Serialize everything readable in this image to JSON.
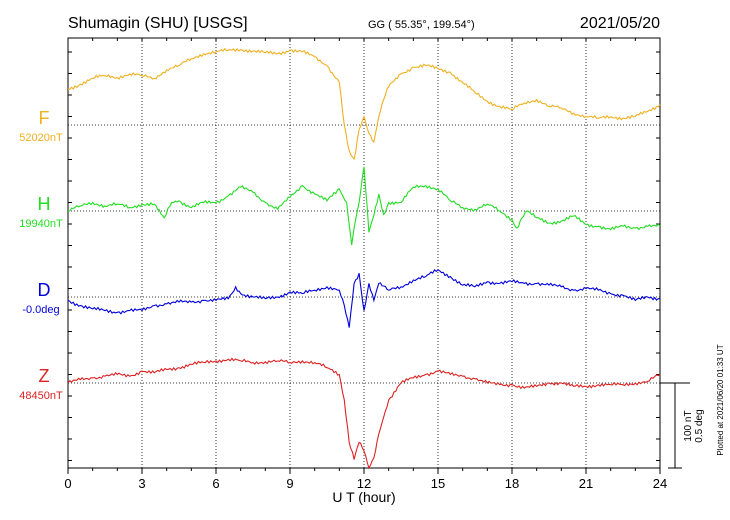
{
  "header": {
    "station": "Shumagin (SHU)  [USGS]",
    "coords": "GG ( 55.35°, 199.54°)",
    "date": "2021/05/20"
  },
  "scale": {
    "nt": "100 nT",
    "deg": "0.5 deg"
  },
  "plotted_note": "Plotted at 2021/06/20 01:33 UT",
  "chart_data": {
    "type": "line",
    "xlabel": "U T (hour)",
    "xlim": [
      0,
      24
    ],
    "xticks": [
      0,
      3,
      6,
      9,
      12,
      15,
      18,
      21,
      24
    ],
    "grid": true,
    "series": [
      {
        "name": "F",
        "baseline": "52020nT",
        "color": "#f0b020",
        "x": [
          0,
          0.5,
          1,
          1.5,
          2,
          2.5,
          3,
          3.5,
          4,
          4.5,
          5,
          5.5,
          6,
          6.5,
          7,
          7.5,
          8,
          8.5,
          9,
          9.5,
          10,
          10.5,
          11,
          11.2,
          11.4,
          11.6,
          11.8,
          12,
          12.2,
          12.4,
          12.6,
          12.8,
          13,
          13.5,
          14,
          14.5,
          15,
          15.5,
          16,
          16.5,
          17,
          17.5,
          18,
          18.5,
          19,
          19.5,
          20,
          20.5,
          21,
          21.5,
          22,
          22.5,
          23,
          23.5,
          24
        ],
        "y": [
          42,
          48,
          55,
          58,
          56,
          60,
          58,
          55,
          65,
          70,
          78,
          84,
          86,
          88,
          89,
          87,
          85,
          84,
          88,
          86,
          80,
          70,
          50,
          0,
          -30,
          -40,
          -5,
          10,
          -10,
          -20,
          10,
          30,
          45,
          60,
          68,
          70,
          66,
          62,
          50,
          38,
          28,
          22,
          18,
          26,
          30,
          22,
          20,
          14,
          10,
          8,
          10,
          8,
          10,
          16,
          24
        ]
      },
      {
        "name": "H",
        "baseline": "19940nT",
        "color": "#22dd22",
        "x": [
          0,
          0.5,
          1,
          1.5,
          2,
          2.5,
          3,
          3.5,
          3.9,
          4.2,
          4.5,
          5,
          5.5,
          6,
          6.5,
          7,
          7.5,
          8,
          8.5,
          9,
          9.5,
          10,
          10.5,
          11,
          11.3,
          11.5,
          11.6,
          11.8,
          12,
          12.2,
          12.4,
          12.6,
          12.8,
          13,
          13.5,
          14,
          14.5,
          15,
          15.5,
          16,
          16.5,
          17,
          17.5,
          18,
          18.2,
          18.4,
          18.6,
          19,
          19.5,
          20,
          20.5,
          21,
          21.5,
          22,
          22.5,
          23,
          23.5,
          24
        ],
        "y": [
          0,
          6,
          10,
          6,
          8,
          4,
          8,
          8,
          -8,
          10,
          12,
          4,
          10,
          10,
          18,
          28,
          22,
          10,
          2,
          16,
          30,
          20,
          12,
          26,
          10,
          -40,
          -20,
          10,
          52,
          -25,
          -5,
          20,
          -4,
          10,
          10,
          28,
          30,
          26,
          12,
          4,
          2,
          8,
          0,
          -10,
          -20,
          -8,
          0,
          -8,
          -14,
          -12,
          -6,
          -16,
          -18,
          -22,
          -18,
          -20,
          -18,
          -18
        ]
      },
      {
        "name": "D",
        "baseline": "-0.0deg",
        "color": "#0000dd",
        "x": [
          0,
          0.5,
          1,
          1.5,
          2,
          2.5,
          3,
          3.5,
          4,
          4.5,
          5,
          5.5,
          6,
          6.5,
          6.8,
          7,
          7.5,
          8,
          8.5,
          9,
          9.5,
          10,
          10.5,
          11,
          11.2,
          11.4,
          11.6,
          11.8,
          12,
          12.2,
          12.4,
          12.6,
          13,
          13.5,
          14,
          14.5,
          15,
          15.5,
          16,
          16.5,
          17,
          17.5,
          18,
          18.5,
          19,
          19.5,
          20,
          20.5,
          21,
          21.5,
          22,
          22.5,
          23,
          23.5,
          24
        ],
        "y": [
          -0.02,
          -0.05,
          -0.07,
          -0.08,
          -0.09,
          -0.08,
          -0.08,
          -0.05,
          -0.04,
          -0.03,
          -0.03,
          -0.02,
          -0.02,
          -0.01,
          0.06,
          0.02,
          0,
          -0.01,
          0,
          0.03,
          0.02,
          0.04,
          0.06,
          0.04,
          -0.05,
          -0.18,
          0.08,
          0.14,
          -0.08,
          0.08,
          -0.02,
          0.08,
          0.04,
          0.06,
          0.1,
          0.12,
          0.16,
          0.12,
          0.07,
          0.06,
          0.09,
          0.08,
          0.09,
          0.08,
          0.08,
          0.07,
          0.06,
          0.04,
          0.05,
          0.04,
          0.02,
          0.01,
          -0.02,
          0,
          -0.01
        ]
      },
      {
        "name": "Z",
        "baseline": "48450nT",
        "color": "#dd2222",
        "x": [
          0,
          0.5,
          1,
          1.5,
          2,
          2.5,
          3,
          3.5,
          4,
          4.5,
          5,
          5.5,
          6,
          6.5,
          7,
          7.5,
          8,
          8.5,
          9,
          9.5,
          10,
          10.5,
          11,
          11.2,
          11.4,
          11.6,
          11.8,
          12,
          12.2,
          12.4,
          12.6,
          12.8,
          13,
          13.5,
          14,
          14.5,
          15,
          15.5,
          16,
          16.5,
          17,
          17.5,
          18,
          18.5,
          19,
          19.5,
          20,
          20.5,
          21,
          21.5,
          22,
          22.5,
          23,
          23.5,
          24
        ],
        "y": [
          0,
          4,
          6,
          8,
          10,
          8,
          14,
          12,
          16,
          18,
          22,
          24,
          26,
          28,
          26,
          24,
          25,
          26,
          24,
          26,
          24,
          18,
          10,
          -20,
          -70,
          -90,
          -70,
          -80,
          -100,
          -88,
          -60,
          -40,
          -20,
          0,
          6,
          10,
          14,
          10,
          8,
          5,
          0,
          -2,
          -2,
          -6,
          -4,
          0,
          0,
          -4,
          -4,
          -2,
          -2,
          -2,
          0,
          2,
          10
        ]
      }
    ]
  }
}
